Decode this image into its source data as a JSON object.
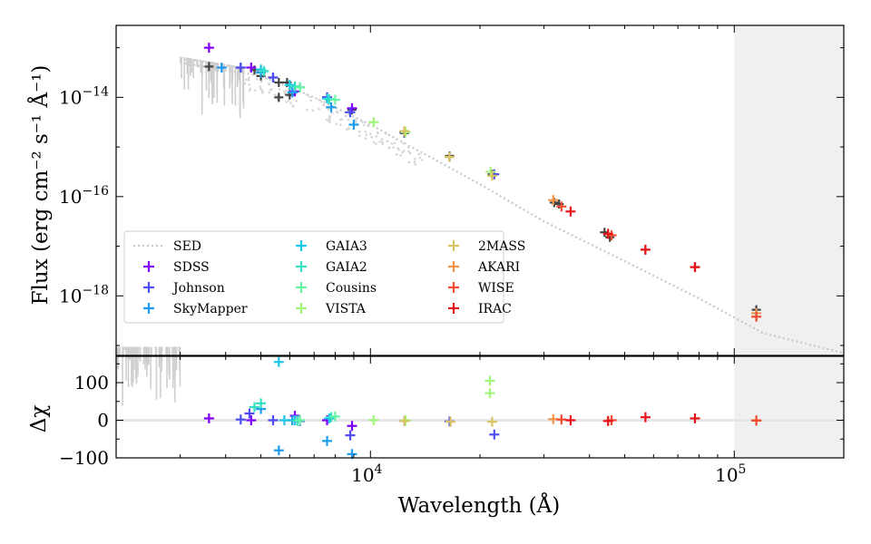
{
  "chart_data": {
    "type": "scatter",
    "title": "",
    "x_scale": "log",
    "xlim": [
      2000,
      200000
    ],
    "xlabel": "Wavelength (Å)",
    "x_ticks": [
      {
        "value": 10000,
        "base": "10",
        "exp": "4"
      },
      {
        "value": 100000,
        "base": "10",
        "exp": "5"
      }
    ],
    "shaded_region": {
      "from": 100000,
      "to": 200000,
      "color": "#f0f0f0"
    },
    "top_panel": {
      "ylabel": "Flux (erg cm⁻² s⁻¹ Å⁻¹)",
      "y_scale": "log",
      "ylim_log10": [
        -19.2,
        -12.55
      ],
      "y_ticks": [
        {
          "value": -14,
          "base": "10",
          "exp": "−14"
        },
        {
          "value": -16,
          "base": "10",
          "exp": "−16"
        },
        {
          "value": -18,
          "base": "10",
          "exp": "−18"
        }
      ],
      "sed_line": {
        "name": "SED",
        "style": "dotted",
        "color": "#c8c8c8",
        "points": [
          [
            3000,
            -13.3
          ],
          [
            5000,
            -13.57
          ],
          [
            7000,
            -14.0
          ],
          [
            10000,
            -14.55
          ],
          [
            15000,
            -15.25
          ],
          [
            20000,
            -15.75
          ],
          [
            30000,
            -16.5
          ],
          [
            50000,
            -17.3
          ],
          [
            80000,
            -18.05
          ],
          [
            120000,
            -18.75
          ],
          [
            200000,
            -19.15
          ]
        ]
      },
      "model_points": [
        [
          3600,
          -13.38
        ],
        [
          4400,
          -13.4
        ],
        [
          4800,
          -13.45
        ],
        [
          5000,
          -13.57
        ],
        [
          5400,
          -13.6
        ],
        [
          5600,
          -13.7
        ],
        [
          5600,
          -14.0
        ],
        [
          5900,
          -13.7
        ],
        [
          6000,
          -13.95
        ],
        [
          7600,
          -14.0
        ],
        [
          8900,
          -14.25
        ],
        [
          12400,
          -14.72
        ],
        [
          16500,
          -15.18
        ],
        [
          21600,
          -15.55
        ],
        [
          32000,
          -16.12
        ],
        [
          33000,
          -16.15
        ],
        [
          44000,
          -16.72
        ],
        [
          45500,
          -16.82
        ],
        [
          57000,
          -17.07
        ],
        [
          78000,
          -17.42
        ],
        [
          115000,
          -18.28
        ]
      ]
    },
    "bottom_panel": {
      "ylabel": "Δχ",
      "ylim": [
        -100,
        170
      ],
      "y_ticks": [
        {
          "value": 100,
          "label": "100"
        },
        {
          "value": 0,
          "label": "0"
        },
        {
          "value": -100,
          "label": "−100"
        }
      ]
    },
    "series": [
      {
        "name": "SDSS",
        "color": "#8000ff",
        "flux": [
          [
            3600,
            -13.0
          ],
          [
            4700,
            -13.4
          ],
          [
            6200,
            -13.88
          ],
          [
            7600,
            -14.0
          ],
          [
            8900,
            -14.22
          ]
        ],
        "resid": [
          [
            3600,
            5
          ],
          [
            4700,
            0
          ],
          [
            6200,
            12
          ],
          [
            7600,
            0
          ],
          [
            8900,
            -15
          ]
        ]
      },
      {
        "name": "Johnson",
        "color": "#4d4df5",
        "flux": [
          [
            4400,
            -13.4
          ],
          [
            5400,
            -13.6
          ],
          [
            6400,
            -13.8
          ],
          [
            8800,
            -14.3
          ],
          [
            12400,
            -14.7
          ],
          [
            16500,
            -15.2
          ],
          [
            21900,
            -15.55
          ]
        ],
        "resid": [
          [
            4400,
            2
          ],
          [
            4650,
            18
          ],
          [
            5400,
            0
          ],
          [
            6400,
            -2
          ],
          [
            8800,
            -40
          ],
          [
            12400,
            -2
          ],
          [
            16500,
            -3
          ],
          [
            21900,
            -38
          ]
        ]
      },
      {
        "name": "SkyMapper",
        "color": "#1a9cf0",
        "flux": [
          [
            3900,
            -13.4
          ],
          [
            5000,
            -13.5
          ],
          [
            6100,
            -13.9
          ],
          [
            7800,
            -14.2
          ],
          [
            9000,
            -14.55
          ]
        ],
        "resid": [
          [
            5000,
            30
          ],
          [
            5600,
            -80
          ],
          [
            6100,
            0
          ],
          [
            7600,
            -55
          ],
          [
            8900,
            -90
          ]
        ]
      },
      {
        "name": "GAIA3",
        "color": "#1ac7e6",
        "flux": [
          [
            5000,
            -13.44
          ],
          [
            6000,
            -13.75
          ],
          [
            7600,
            -14.02
          ]
        ],
        "resid": [
          [
            5600,
            155
          ],
          [
            5800,
            0
          ],
          [
            6200,
            0
          ],
          [
            7700,
            5
          ]
        ]
      },
      {
        "name": "GAIA2",
        "color": "#33e0c2",
        "flux": [
          [
            5100,
            -13.47
          ],
          [
            6200,
            -13.78
          ],
          [
            7700,
            -14.04
          ]
        ],
        "resid": [
          [
            4800,
            35
          ],
          [
            5000,
            45
          ],
          [
            6300,
            -1
          ],
          [
            7800,
            8
          ]
        ]
      },
      {
        "name": "Cousins",
        "color": "#66f5a3",
        "flux": [
          [
            6400,
            -13.8
          ],
          [
            8000,
            -14.05
          ]
        ],
        "resid": [
          [
            6400,
            0
          ],
          [
            8000,
            10
          ]
        ]
      },
      {
        "name": "VISTA",
        "color": "#a3f57a",
        "flux": [
          [
            10200,
            -14.5
          ],
          [
            12500,
            -14.7
          ],
          [
            21400,
            -15.5
          ]
        ],
        "resid": [
          [
            10200,
            0
          ],
          [
            12500,
            0
          ],
          [
            21300,
            105
          ],
          [
            21300,
            72
          ]
        ]
      },
      {
        "name": "2MASS",
        "color": "#d9c462",
        "flux": [
          [
            12400,
            -14.68
          ],
          [
            16500,
            -15.2
          ],
          [
            21600,
            -15.58
          ]
        ],
        "resid": [
          [
            12400,
            -2
          ],
          [
            16600,
            -4
          ],
          [
            21600,
            -4
          ]
        ]
      },
      {
        "name": "AKARI",
        "color": "#f59447",
        "flux": [
          [
            31800,
            -16.07
          ],
          [
            115000,
            -18.35
          ]
        ],
        "resid": [
          [
            31800,
            3
          ],
          [
            115000,
            0
          ]
        ]
      },
      {
        "name": "WISE",
        "color": "#f24d33",
        "flux": [
          [
            33500,
            -16.2
          ],
          [
            46000,
            -16.78
          ],
          [
            115000,
            -18.42
          ]
        ],
        "resid": [
          [
            33500,
            2
          ],
          [
            46000,
            0
          ],
          [
            115000,
            -1
          ]
        ]
      },
      {
        "name": "IRAC",
        "color": "#e8141a",
        "flux": [
          [
            35500,
            -16.3
          ],
          [
            45000,
            -16.75
          ],
          [
            57000,
            -17.07
          ],
          [
            78000,
            -17.42
          ]
        ],
        "resid": [
          [
            35500,
            0
          ],
          [
            45000,
            -2
          ],
          [
            57000,
            8
          ],
          [
            78000,
            5
          ]
        ]
      }
    ],
    "legend": {
      "placement": "lower-left",
      "entries": [
        "SED",
        "SDSS",
        "Johnson",
        "SkyMapper",
        "GAIA3",
        "GAIA2",
        "Cousins",
        "VISTA",
        "2MASS",
        "AKARI",
        "WISE",
        "IRAC"
      ]
    }
  }
}
